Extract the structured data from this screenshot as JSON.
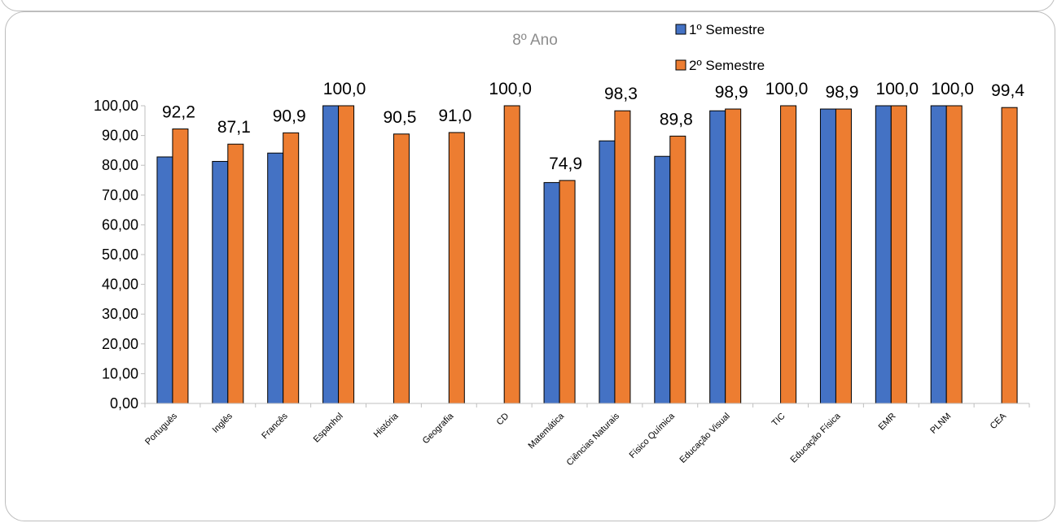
{
  "chart_data": {
    "type": "bar",
    "title": "8º Ano",
    "xlabel": "",
    "ylabel": "",
    "ylim": [
      0,
      100
    ],
    "yticks": [
      "0,00",
      "10,00",
      "20,00",
      "30,00",
      "40,00",
      "50,00",
      "60,00",
      "70,00",
      "80,00",
      "90,00",
      "100,00"
    ],
    "grid": false,
    "legend_position": "top-right",
    "categories": [
      "Português",
      "Inglês",
      "Francês",
      "Espanhol",
      "História",
      "Geografia",
      "CD",
      "Matemática",
      "Ciências Naturais",
      "Físico Química",
      "Educação Visual",
      "TIC",
      "Educação Física",
      "EMR",
      "PLNM",
      "CEA"
    ],
    "series": [
      {
        "name": "1º Semestre",
        "color": "#4472c4",
        "values": [
          82.8,
          81.3,
          84.1,
          100,
          null,
          null,
          null,
          74.2,
          88.2,
          83.0,
          98.3,
          null,
          98.9,
          100,
          100,
          null
        ]
      },
      {
        "name": "2º Semestre",
        "color": "#ed7d31",
        "values": [
          92.2,
          87.1,
          90.9,
          100,
          90.5,
          91.0,
          100,
          74.9,
          98.3,
          89.8,
          98.9,
          100,
          98.9,
          100,
          100,
          99.4
        ],
        "data_labels": [
          "92,2",
          "87,1",
          "90,9",
          "100,0",
          "90,5",
          "91,0",
          "100,0",
          "74,9",
          "98,3",
          "89,8",
          "98,9",
          "100,0",
          "98,9",
          "100,0",
          "100,0",
          "99,4"
        ]
      }
    ]
  }
}
